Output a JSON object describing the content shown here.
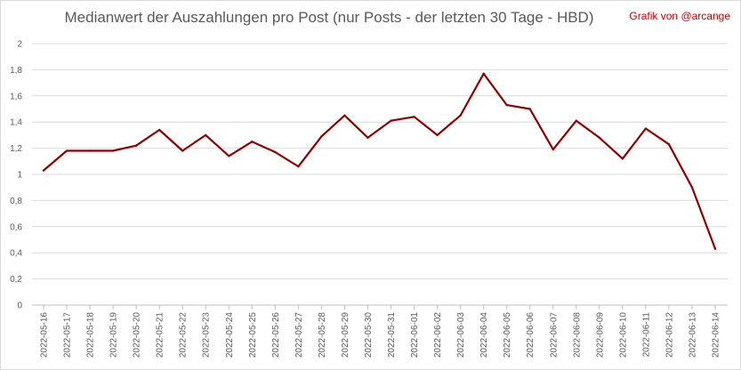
{
  "chart_data": {
    "type": "line",
    "title": "Medianwert der Auszahlungen pro Post (nur Posts - der letzten 30 Tage - HBD)",
    "credit": "Grafik von @arcange",
    "xlabel": "",
    "ylabel": "",
    "ylim": [
      0,
      2
    ],
    "yticks": [
      "0",
      "0,2",
      "0,4",
      "0,6",
      "0,8",
      "1",
      "1,2",
      "1,4",
      "1,6",
      "1,8",
      "2"
    ],
    "grid": true,
    "legend": "none",
    "categories": [
      "2022-05-16",
      "2022-05-17",
      "2022-05-18",
      "2022-05-19",
      "2022-05-20",
      "2022-05-21",
      "2022-05-22",
      "2022-05-23",
      "2022-05-24",
      "2022-05-25",
      "2022-05-26",
      "2022-05-27",
      "2022-05-28",
      "2022-05-29",
      "2022-05-30",
      "2022-05-31",
      "2022-06-01",
      "2022-06-02",
      "2022-06-03",
      "2022-06-04",
      "2022-06-05",
      "2022-06-06",
      "2022-06-07",
      "2022-06-08",
      "2022-06-09",
      "2022-06-10",
      "2022-06-11",
      "2022-06-12",
      "2022-06-13",
      "2022-06-14"
    ],
    "series": [
      {
        "color": "#8b0000",
        "values": [
          1.03,
          1.18,
          1.18,
          1.18,
          1.22,
          1.34,
          1.18,
          1.3,
          1.14,
          1.25,
          1.17,
          1.06,
          1.29,
          1.45,
          1.28,
          1.41,
          1.44,
          1.3,
          1.45,
          1.77,
          1.53,
          1.5,
          1.19,
          1.41,
          1.28,
          1.12,
          1.35,
          1.23,
          0.9,
          0.43
        ]
      }
    ]
  }
}
